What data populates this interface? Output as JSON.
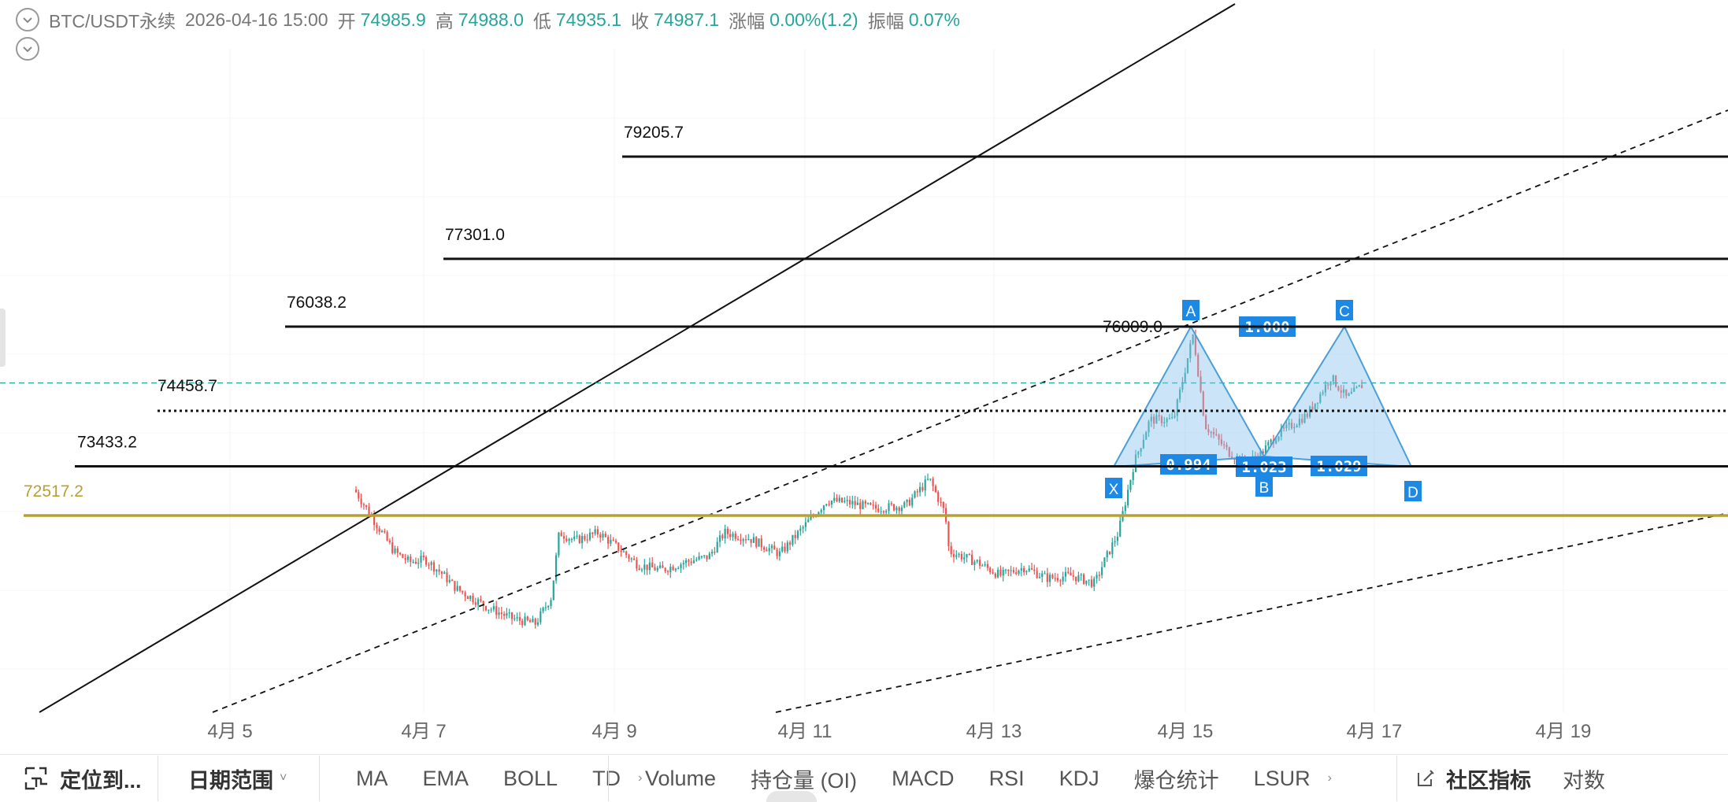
{
  "header": {
    "symbol": "BTC/USDT永续",
    "datetime": "2026-04-16 15:00",
    "open_label": "开",
    "open": "74985.9",
    "high_label": "高",
    "high": "74988.0",
    "low_label": "低",
    "low": "74935.1",
    "close_label": "收",
    "close": "74987.1",
    "change_label": "涨幅",
    "change": "0.00%(1.2)",
    "amp_label": "振幅",
    "amp": "0.07%"
  },
  "levels": [
    "79205.7",
    "77301.0",
    "76038.2",
    "76009.0",
    "74458.7",
    "73433.2",
    "72517.2"
  ],
  "pattern": {
    "points": [
      "X",
      "A",
      "B",
      "C",
      "D"
    ],
    "ratios": [
      "1.000",
      "0.994",
      "1.023",
      "1.029"
    ]
  },
  "x_axis": [
    "4月 5",
    "4月 7",
    "4月 9",
    "4月 11",
    "4月 13",
    "4月 15",
    "4月 17",
    "4月 19"
  ],
  "colors": {
    "up": "#26a69a",
    "down": "#ef5350",
    "support": "#b8a032",
    "pattern_fill": "#8ec3ee",
    "pattern_label": "#1e88e5",
    "price_line": "#26a69a"
  },
  "toolbar": {
    "locate": "定位到...",
    "date_range": "日期范围",
    "indicators_a": [
      "MA",
      "EMA",
      "BOLL",
      "TD"
    ],
    "indicators_b": [
      "Volume",
      "持仓量 (OI)",
      "MACD",
      "RSI",
      "KDJ",
      "爆仓统计",
      "LSUR"
    ],
    "community": "社区指标",
    "contract": "对数"
  }
}
